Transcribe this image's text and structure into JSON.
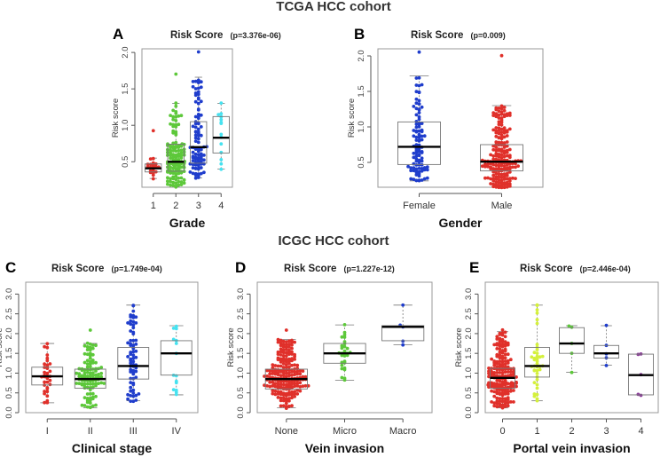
{
  "titles": {
    "tcga": "TCGA HCC cohort",
    "icgc": "ICGC HCC cohort"
  },
  "colors": {
    "red": "#e0302a",
    "green": "#5dc83a",
    "blue": "#1f3dcc",
    "cyan": "#46e2f0",
    "yellow": "#d4f03c",
    "purple": "#8d3a9c"
  },
  "chart_data": [
    {
      "id": "A",
      "type": "box-scatter",
      "title": "Risk Score",
      "pvalue": "(p=3.376e-06)",
      "xlabel": "Grade",
      "ylabel": "Risk score",
      "ylim": [
        0.15,
        2.05
      ],
      "yticks": [
        "0.5",
        "1.0",
        "1.5",
        "2.0"
      ],
      "categories": [
        "1",
        "2",
        "3",
        "4"
      ],
      "series": [
        {
          "name": "1",
          "color": "red",
          "n": 20,
          "min": 0.27,
          "q1": 0.36,
          "median": 0.41,
          "q3": 0.47,
          "max": 0.92,
          "whiskerLow": 0.27,
          "whiskerHigh": 0.55
        },
        {
          "name": "2",
          "color": "green",
          "n": 140,
          "min": 0.16,
          "q1": 0.37,
          "median": 0.5,
          "q3": 0.74,
          "max": 1.71,
          "whiskerLow": 0.16,
          "whiskerHigh": 1.3
        },
        {
          "name": "3",
          "color": "blue",
          "n": 95,
          "min": 0.28,
          "q1": 0.48,
          "median": 0.7,
          "q3": 1.05,
          "max": 2.01,
          "whiskerLow": 0.28,
          "whiskerHigh": 1.66
        },
        {
          "name": "4",
          "color": "cyan",
          "n": 14,
          "min": 0.4,
          "q1": 0.62,
          "median": 0.83,
          "q3": 1.12,
          "max": 1.3,
          "whiskerLow": 0.4,
          "whiskerHigh": 1.3
        }
      ]
    },
    {
      "id": "B",
      "type": "box-scatter",
      "title": "Risk Score",
      "pvalue": "(p=0.009)",
      "xlabel": "Gender",
      "ylabel": "Risk score",
      "ylim": [
        0.15,
        2.1
      ],
      "yticks": [
        "0.5",
        "1.0",
        "1.5",
        "2.0"
      ],
      "categories": [
        "Female",
        "Male"
      ],
      "series": [
        {
          "name": "Female",
          "color": "blue",
          "n": 100,
          "min": 0.24,
          "q1": 0.47,
          "median": 0.72,
          "q3": 1.07,
          "max": 2.05,
          "whiskerLow": 0.24,
          "whiskerHigh": 1.72
        },
        {
          "name": "Male",
          "color": "red",
          "n": 190,
          "min": 0.15,
          "q1": 0.38,
          "median": 0.51,
          "q3": 0.75,
          "max": 2.0,
          "whiskerLow": 0.15,
          "whiskerHigh": 1.3
        }
      ]
    },
    {
      "id": "C",
      "type": "box-scatter",
      "title": "Risk Score",
      "pvalue": "(p=1.749e-04)",
      "xlabel": "Clinical stage",
      "ylabel": "Risk score",
      "ylim": [
        0,
        3.3
      ],
      "yticks": [
        "0.0",
        "0.5",
        "1.0",
        "1.5",
        "2.0",
        "2.5",
        "3.0"
      ],
      "categories": [
        "I",
        "II",
        "III",
        "IV"
      ],
      "series": [
        {
          "name": "I",
          "color": "red",
          "n": 35,
          "min": 0.25,
          "q1": 0.7,
          "median": 0.92,
          "q3": 1.15,
          "max": 1.75,
          "whiskerLow": 0.25,
          "whiskerHigh": 1.75
        },
        {
          "name": "II",
          "color": "green",
          "n": 110,
          "min": 0.12,
          "q1": 0.62,
          "median": 0.85,
          "q3": 1.1,
          "max": 2.1,
          "whiskerLow": 0.12,
          "whiskerHigh": 1.75
        },
        {
          "name": "III",
          "color": "blue",
          "n": 70,
          "min": 0.3,
          "q1": 0.85,
          "median": 1.18,
          "q3": 1.65,
          "max": 2.72,
          "whiskerLow": 0.3,
          "whiskerHigh": 2.72
        },
        {
          "name": "IV",
          "color": "cyan",
          "n": 15,
          "min": 0.45,
          "q1": 0.95,
          "median": 1.5,
          "q3": 1.82,
          "max": 2.2,
          "whiskerLow": 0.45,
          "whiskerHigh": 2.2
        }
      ]
    },
    {
      "id": "D",
      "type": "box-scatter",
      "title": "Risk Score",
      "pvalue": "(p=1.227e-12)",
      "xlabel": "Vein invasion",
      "ylabel": "Risk score",
      "ylim": [
        0,
        3.3
      ],
      "yticks": [
        "0.0",
        "0.5",
        "1.0",
        "1.5",
        "2.0",
        "2.5",
        "3.0"
      ],
      "categories": [
        "None",
        "Micro",
        "Macro"
      ],
      "series": [
        {
          "name": "None",
          "color": "red",
          "n": 210,
          "min": 0.12,
          "q1": 0.6,
          "median": 0.85,
          "q3": 1.1,
          "max": 2.1,
          "whiskerLow": 0.12,
          "whiskerHigh": 1.85
        },
        {
          "name": "Micro",
          "color": "green",
          "n": 30,
          "min": 0.82,
          "q1": 1.25,
          "median": 1.5,
          "q3": 1.75,
          "max": 2.22,
          "whiskerLow": 0.82,
          "whiskerHigh": 2.22
        },
        {
          "name": "Macro",
          "color": "blue",
          "n": 4,
          "min": 1.72,
          "q1": 1.82,
          "median": 2.17,
          "q3": 2.2,
          "max": 2.72,
          "whiskerLow": 1.72,
          "whiskerHigh": 2.72
        }
      ]
    },
    {
      "id": "E",
      "type": "box-scatter",
      "title": "Risk Score",
      "pvalue": "(p=2.446e-04)",
      "xlabel": "Portal vein invasion",
      "ylabel": "Risk score",
      "ylim": [
        0,
        3.3
      ],
      "yticks": [
        "0.0",
        "0.5",
        "1.0",
        "1.5",
        "2.0",
        "2.5",
        "3.0"
      ],
      "categories": [
        "0",
        "1",
        "2",
        "3",
        "4"
      ],
      "series": [
        {
          "name": "0",
          "color": "red",
          "n": 190,
          "min": 0.12,
          "q1": 0.62,
          "median": 0.88,
          "q3": 1.12,
          "max": 2.1,
          "whiskerLow": 0.12,
          "whiskerHigh": 2.05
        },
        {
          "name": "1",
          "color": "yellow",
          "n": 40,
          "min": 0.3,
          "q1": 0.9,
          "median": 1.18,
          "q3": 1.65,
          "max": 2.72,
          "whiskerLow": 0.3,
          "whiskerHigh": 2.72
        },
        {
          "name": "2",
          "color": "green",
          "n": 4,
          "min": 1.02,
          "q1": 1.5,
          "median": 1.75,
          "q3": 2.15,
          "max": 2.2,
          "whiskerLow": 1.02,
          "whiskerHigh": 2.2
        },
        {
          "name": "3",
          "color": "blue",
          "n": 5,
          "min": 1.2,
          "q1": 1.38,
          "median": 1.5,
          "q3": 1.7,
          "max": 2.2,
          "whiskerLow": 1.2,
          "whiskerHigh": 2.2
        },
        {
          "name": "4",
          "color": "purple",
          "n": 2,
          "min": 0.45,
          "q1": 0.45,
          "median": 0.95,
          "q3": 1.48,
          "max": 1.48,
          "whiskerLow": 0.45,
          "whiskerHigh": 1.48
        }
      ]
    }
  ]
}
